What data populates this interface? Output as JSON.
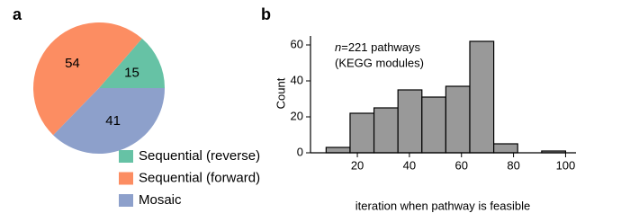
{
  "chart_data": [
    {
      "type": "pie",
      "panel_label": "a",
      "categories": [
        "Sequential (reverse)",
        "Sequential (forward)",
        "Mosaic"
      ],
      "values": [
        15,
        54,
        41
      ],
      "colors": [
        "#66c2a5",
        "#fc8d62",
        "#8da0cb"
      ]
    },
    {
      "type": "histogram",
      "panel_label": "b",
      "bins": [
        8,
        17.2,
        26.4,
        35.6,
        44.8,
        54,
        63.2,
        72.4,
        81.6,
        90.8,
        100
      ],
      "values": [
        3,
        22,
        25,
        35,
        31,
        37,
        62,
        5,
        0,
        1
      ],
      "color": "#999999",
      "xlabel": "iteration when pathway is feasible",
      "ylabel": "Count",
      "annotation": {
        "variable": "n",
        "text": "=221 pathways",
        "note": "(KEGG modules)"
      },
      "xlim": [
        2,
        104
      ],
      "xticks": [
        20,
        40,
        60,
        80,
        100
      ],
      "ylim": [
        0,
        65
      ],
      "yticks": [
        0,
        20,
        40,
        60
      ]
    }
  ]
}
